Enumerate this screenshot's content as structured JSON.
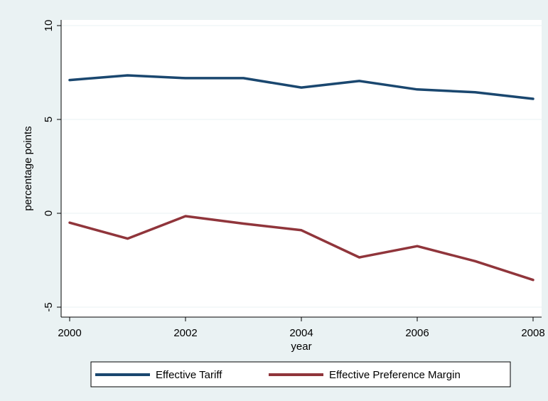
{
  "chart_data": {
    "type": "line",
    "title": "",
    "xlabel": "year",
    "ylabel": "percentage points",
    "xlim": [
      2000,
      2008
    ],
    "ylim": [
      -5,
      10
    ],
    "x_ticks": [
      "2000",
      "2002",
      "2004",
      "2006",
      "2008"
    ],
    "y_ticks": [
      "-5",
      "0",
      "5",
      "10"
    ],
    "grid": true,
    "legend_position": "bottom",
    "series": [
      {
        "name": "Effective Tariff",
        "color": "#1a476f",
        "x": [
          2000,
          2001,
          2002,
          2003,
          2004,
          2005,
          2006,
          2007,
          2008
        ],
        "values": [
          7.1,
          7.35,
          7.2,
          7.2,
          6.7,
          7.05,
          6.6,
          6.45,
          6.1
        ]
      },
      {
        "name": "Effective Preference Margin",
        "color": "#90353b",
        "x": [
          2000,
          2001,
          2002,
          2003,
          2004,
          2005,
          2006,
          2007,
          2008
        ],
        "values": [
          -0.5,
          -1.35,
          -0.15,
          -0.55,
          -0.9,
          -2.35,
          -1.75,
          -2.55,
          -3.55
        ]
      }
    ]
  }
}
